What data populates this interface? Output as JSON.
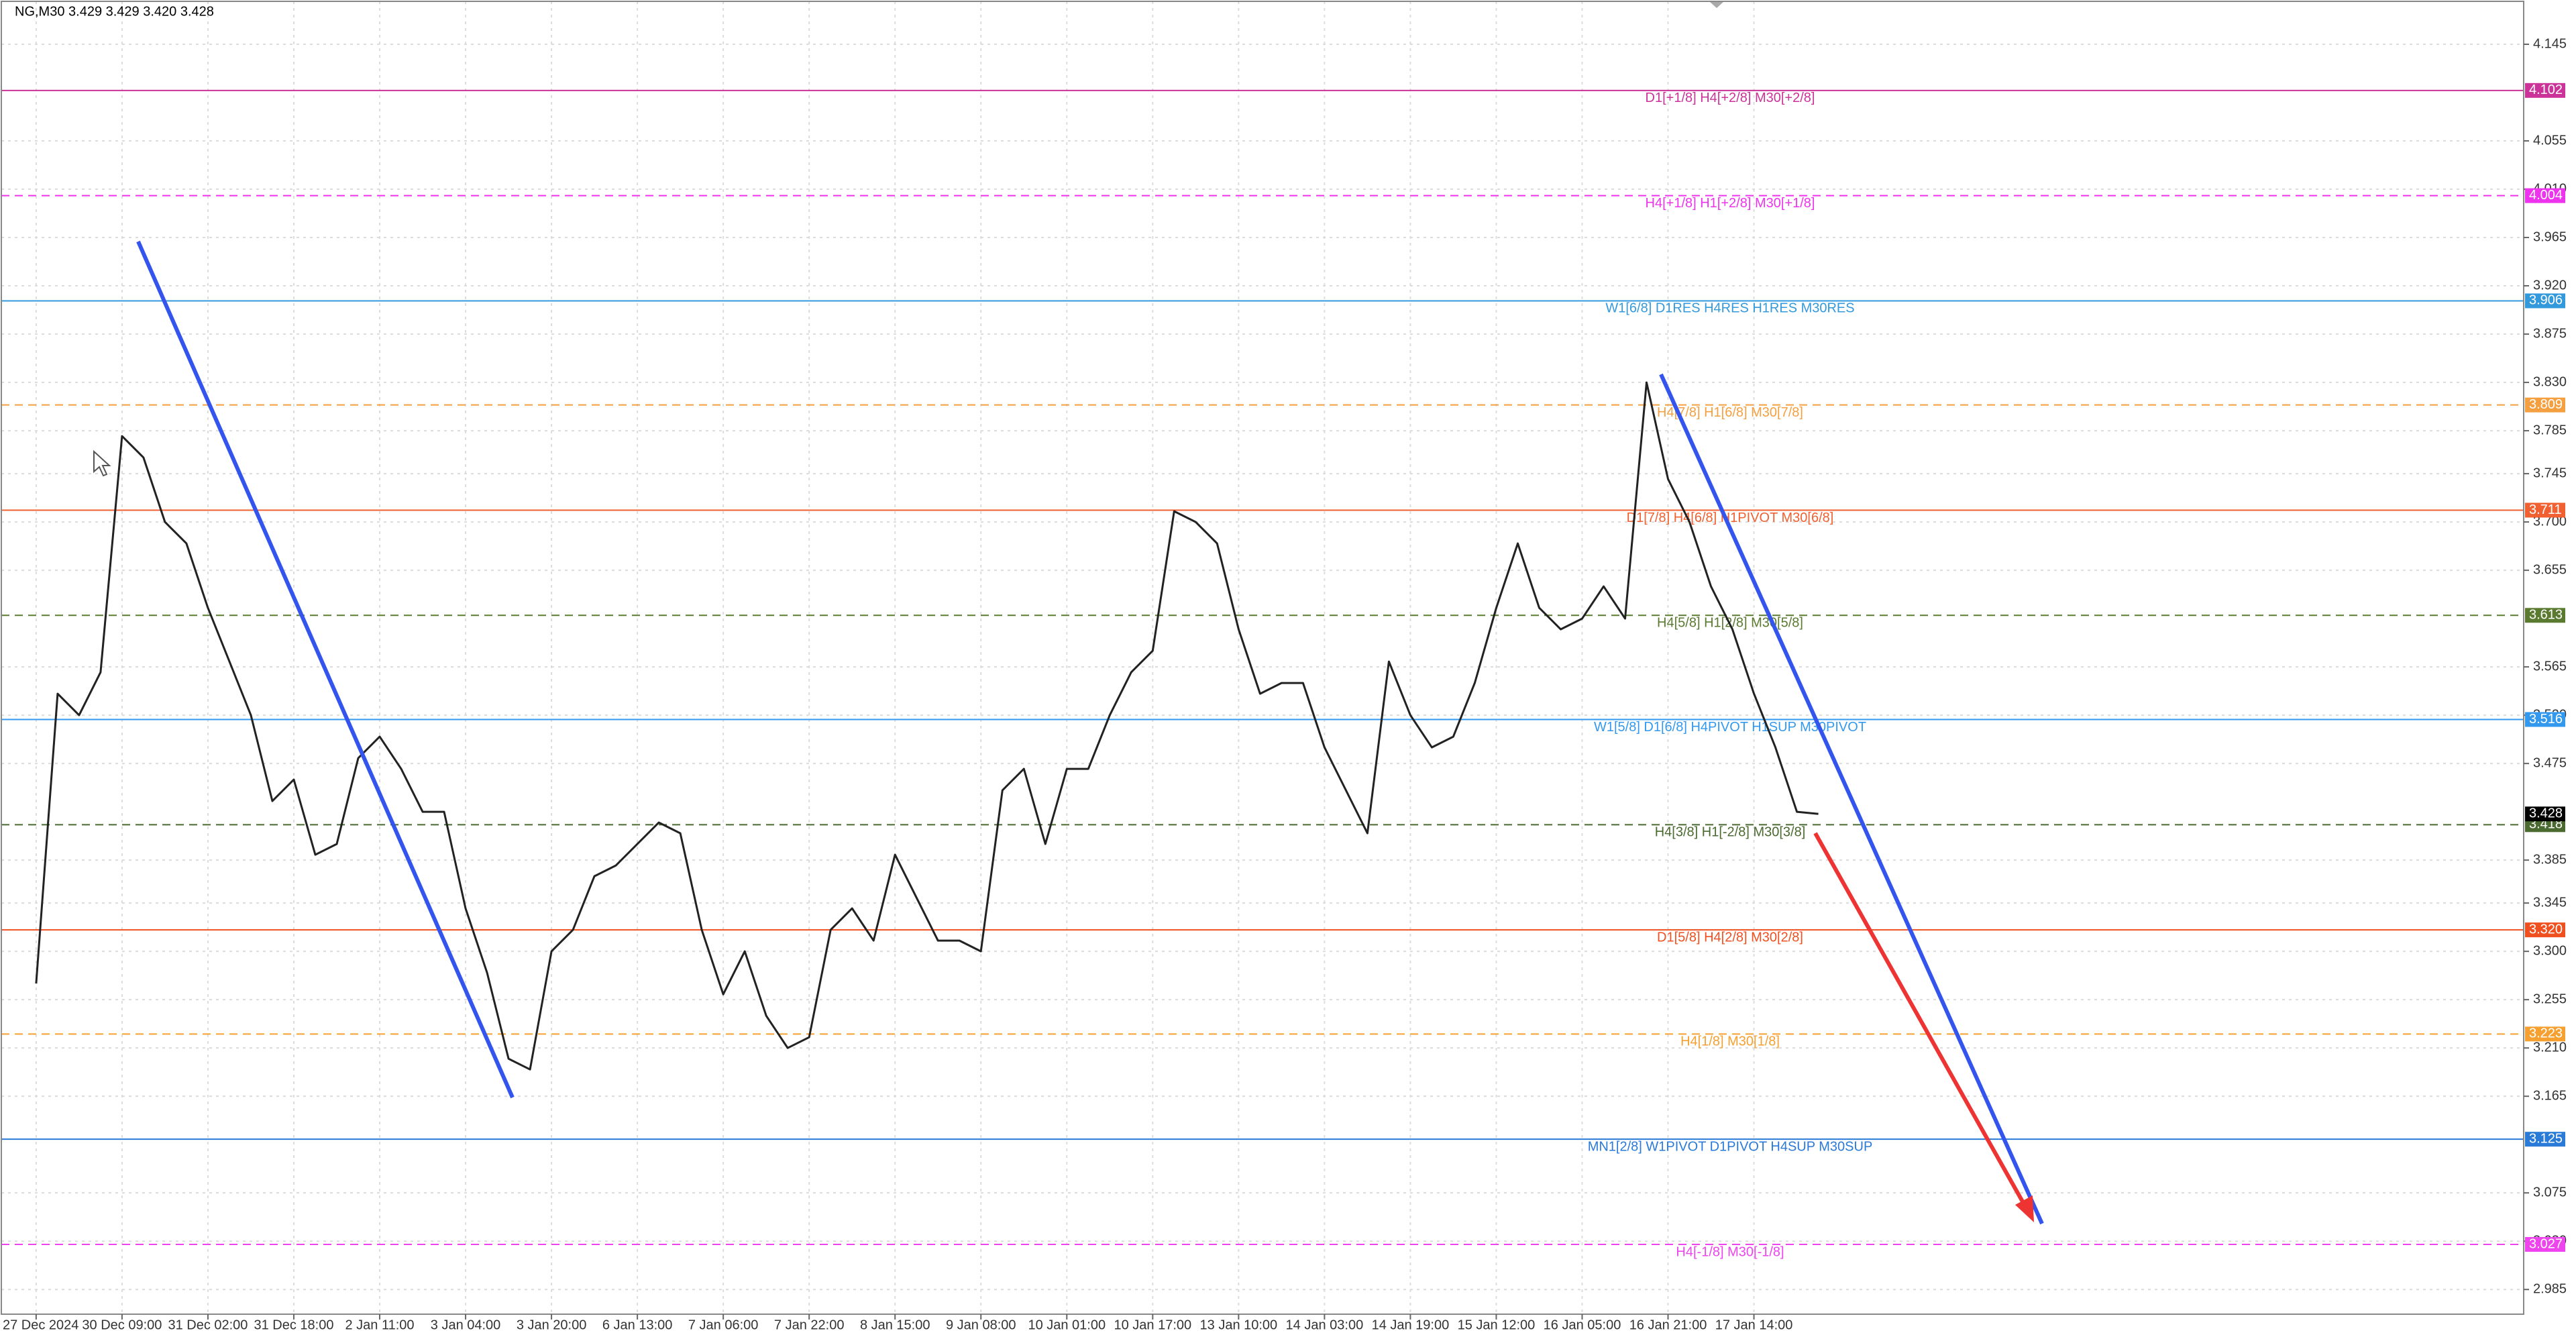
{
  "chart_data": {
    "type": "line",
    "title": "NG,M30  3.429 3.429 3.420 3.428",
    "color": "#222222",
    "grid": true,
    "categories": [
      "27 Dec 2024",
      null,
      null,
      null,
      "30 Dec 09:00",
      null,
      null,
      null,
      "31 Dec 02:00",
      null,
      null,
      null,
      "31 Dec 18:00",
      null,
      null,
      null,
      "2 Jan 11:00",
      null,
      null,
      null,
      "3 Jan 04:00",
      null,
      null,
      null,
      "3 Jan 20:00",
      null,
      null,
      null,
      "6 Jan 13:00",
      null,
      null,
      null,
      "7 Jan 06:00",
      null,
      null,
      null,
      "7 Jan 22:00",
      null,
      null,
      null,
      "8 Jan 15:00",
      null,
      null,
      null,
      "9 Jan 08:00",
      null,
      null,
      null,
      "10 Jan 01:00",
      null,
      null,
      null,
      "10 Jan 17:00",
      null,
      null,
      null,
      "13 Jan 10:00",
      null,
      null,
      null,
      "14 Jan 03:00",
      null,
      null,
      null,
      "14 Jan 19:00",
      null,
      null,
      null,
      "15 Jan 12:00",
      null,
      null,
      null,
      "16 Jan 05:00",
      null,
      null,
      null,
      "16 Jan 21:00",
      null,
      null,
      null,
      "17 Jan 14:00",
      null,
      null,
      null
    ],
    "values": [
      3.27,
      3.54,
      3.52,
      3.56,
      3.78,
      3.76,
      3.7,
      3.68,
      3.62,
      3.57,
      3.52,
      3.44,
      3.46,
      3.39,
      3.4,
      3.48,
      3.5,
      3.47,
      3.43,
      3.43,
      3.34,
      3.28,
      3.2,
      3.19,
      3.3,
      3.32,
      3.37,
      3.38,
      3.4,
      3.42,
      3.41,
      3.32,
      3.26,
      3.3,
      3.24,
      3.21,
      3.22,
      3.32,
      3.34,
      3.31,
      3.39,
      3.35,
      3.31,
      3.31,
      3.3,
      3.45,
      3.47,
      3.4,
      3.47,
      3.47,
      3.52,
      3.56,
      3.58,
      3.71,
      3.7,
      3.68,
      3.6,
      3.54,
      3.55,
      3.55,
      3.49,
      3.45,
      3.41,
      3.57,
      3.52,
      3.49,
      3.5,
      3.55,
      3.62,
      3.68,
      3.62,
      3.6,
      3.61,
      3.64,
      3.61,
      3.83,
      3.74,
      3.7,
      3.64,
      3.6,
      3.54,
      3.49,
      3.43,
      3.428
    ],
    "ylim": [
      2.962,
      4.185
    ],
    "yticks": [
      4.145,
      4.055,
      {
        "value": 4.01,
        "label": "4.010"
      },
      3.965,
      {
        "value": 3.92,
        "label": "3.920"
      },
      3.875,
      {
        "value": 3.83,
        "label": "3.830"
      },
      3.785,
      3.745,
      {
        "value": 3.7,
        "label": "3.700"
      },
      3.655,
      3.565,
      {
        "value": 3.52,
        "label": "3.520"
      },
      3.475,
      3.385,
      3.345,
      {
        "value": 3.3,
        "label": "3.300"
      },
      3.255,
      {
        "value": 3.21,
        "label": "3.210"
      },
      3.165,
      3.075,
      {
        "value": 3.03,
        "label": "3.030"
      },
      2.985
    ],
    "levels": [
      {
        "name": "D1[+1/8] H4[+2/8] M30[+2/8]",
        "value": 4.102,
        "color": "#cc3399",
        "dashed": false
      },
      {
        "name": "H4[+1/8] H1[+2/8] M30[+1/8]",
        "value": 4.004,
        "color": "#ee33ee",
        "dashed": true
      },
      {
        "name": "W1[6/8] D1RES H4RES H1RES M30RES",
        "value": 3.906,
        "color": "#3399dd",
        "dashed": false
      },
      {
        "name": "H4[7/8] H1[6/8] M30[7/8]",
        "value": 3.809,
        "color": "#f5a040",
        "dashed": true
      },
      {
        "name": "D1[7/8] H4[6/8] H1PIVOT M30[6/8]",
        "value": 3.711,
        "color": "#f06030",
        "dashed": false
      },
      {
        "name": "H4[5/8] H1[2/8] M30[5/8]",
        "value": 3.613,
        "color": "#5a7a30",
        "dashed": true
      },
      {
        "name": "W1[5/8] D1[6/8] H4PIVOT H1SUP M30PIVOT",
        "value": 3.516,
        "color": "#3399ee",
        "dashed": false
      },
      {
        "name": "H4[3/8] H1[-2/8] M30[3/8]",
        "value": 3.418,
        "color": "#4a6a30",
        "dashed": true
      },
      {
        "name": "D1[5/8] H4[2/8] M30[2/8]",
        "value": 3.32,
        "value_label": "3.320",
        "color": "#f05020",
        "dashed": false
      },
      {
        "name": "H4[1/8] M30[1/8]",
        "value": 3.223,
        "color": "#f5a030",
        "dashed": true
      },
      {
        "name": "MN1[2/8] W1PIVOT D1PIVOT H4SUP M30SUP",
        "value": 3.125,
        "color": "#2a7ad8",
        "dashed": false
      },
      {
        "name": "H4[-1/8] M30[-1/8]",
        "value": 3.027,
        "color": "#ee44ee",
        "dashed": true
      }
    ]
  }
}
